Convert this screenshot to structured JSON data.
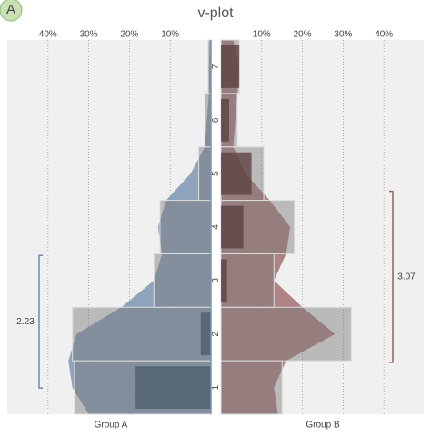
{
  "chart_data": {
    "type": "vplot",
    "title": "v-plot",
    "panel_label": "A",
    "categories": [
      "1",
      "2",
      "3",
      "4",
      "5",
      "6",
      "7"
    ],
    "ylim": [
      0.5,
      7.5
    ],
    "xlim": [
      0,
      50
    ],
    "xticks": [
      {
        "value": 10,
        "label": "10%"
      },
      {
        "value": 20,
        "label": "20%"
      },
      {
        "value": 30,
        "label": "30%"
      },
      {
        "value": 40,
        "label": "40%"
      }
    ],
    "grid": true,
    "series": [
      {
        "name": "Group A",
        "side": "left",
        "color": "#6f8aab",
        "dark_color": "#4f5e70",
        "values": [
          33.5,
          34,
          14,
          12.5,
          3,
          1.5,
          0.7
        ],
        "highlight": [
          18.5,
          2.5,
          0,
          0,
          0,
          0,
          0
        ],
        "density_y": [
          0.5,
          1,
          1.5,
          2,
          2.5,
          3,
          3.5,
          4,
          4.5,
          5,
          5.5,
          6,
          6.5,
          7,
          7.5
        ],
        "density": [
          30,
          34,
          35,
          33,
          22,
          14,
          12,
          13,
          11,
          5,
          1.5,
          1,
          0.5,
          0.5,
          0.3
        ],
        "mean": 2.23,
        "sd": 1.24
      },
      {
        "name": "Group B",
        "side": "right",
        "color": "#9a5f5f",
        "dark_color": "#5e4242",
        "values": [
          15,
          32,
          13,
          18,
          10.5,
          4,
          4.5
        ],
        "highlight": [
          0,
          0,
          1.5,
          5.5,
          7.5,
          2,
          4.5
        ],
        "density_y": [
          0.5,
          1,
          1.5,
          2,
          2.5,
          3,
          3.5,
          4,
          4.5,
          5,
          5.5,
          6,
          6.5,
          7,
          7.5
        ],
        "density": [
          14,
          13,
          16,
          28,
          20,
          13,
          16,
          17,
          12,
          6,
          3,
          3.5,
          4,
          4.5,
          3
        ],
        "mean": 3.07,
        "sd": 1.6
      }
    ]
  }
}
